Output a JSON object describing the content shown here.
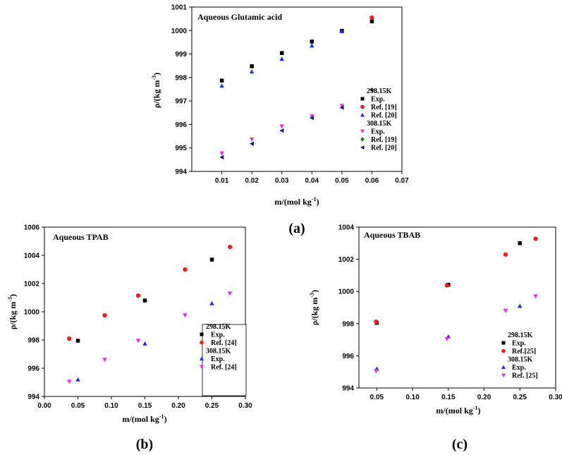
{
  "chart_data": [
    {
      "id": "a",
      "type": "scatter",
      "title": "Aqueous Glutamic acid",
      "panel_label": "(a)",
      "xlabel": "m/(mol kg",
      "xlabel_sup": "-1",
      "xlabel_close": ")",
      "ylabel": "ρ/(kg m",
      "ylabel_sup": "-3",
      "ylabel_close": ")",
      "xlim": [
        0.0,
        0.07
      ],
      "ylim": [
        994,
        1001
      ],
      "xticks": [
        0.01,
        0.02,
        0.03,
        0.04,
        0.05,
        0.06,
        0.07
      ],
      "xtick_labels": [
        "0.01",
        "0.02",
        "0.03",
        "0.04",
        "0.05",
        "0.06",
        "0.07"
      ],
      "yticks": [
        994,
        995,
        996,
        997,
        998,
        999,
        1000,
        1001
      ],
      "ytick_labels": [
        "994",
        "995",
        "996",
        "997",
        "998",
        "999",
        "1000",
        "1001"
      ],
      "legend": [
        {
          "group": "298.15K"
        },
        {
          "label": "Exp.",
          "marker": "square",
          "color": "#000000"
        },
        {
          "label": "Ref. [19]",
          "marker": "circle",
          "color": "#e8221e"
        },
        {
          "label": "Ref. [20]",
          "marker": "triangle-up",
          "color": "#1a2fe0"
        },
        {
          "group": "308.15K"
        },
        {
          "label": "Exp.",
          "marker": "triangle-down",
          "color": "#ea2ce6"
        },
        {
          "label": "Ref. [19]",
          "marker": "diamond",
          "color": "#1b7a1b"
        },
        {
          "label": "Ref. [20]",
          "marker": "triangle-left",
          "color": "#1d1a7a"
        }
      ],
      "series": [
        {
          "name": "298.15K Exp.",
          "marker": "square",
          "color": "#000000",
          "x": [
            0.01,
            0.02,
            0.03,
            0.04,
            0.05,
            0.06
          ],
          "y": [
            997.87,
            998.48,
            999.04,
            999.53,
            999.99,
            1000.39
          ]
        },
        {
          "name": "298.15K Ref. [19]",
          "marker": "circle",
          "color": "#e8221e",
          "x": [
            0.06
          ],
          "y": [
            1000.55
          ]
        },
        {
          "name": "298.15K Ref. [20]",
          "marker": "triangle-up",
          "color": "#1a2fe0",
          "x": [
            0.01,
            0.02,
            0.03,
            0.04,
            0.05
          ],
          "y": [
            997.65,
            998.25,
            998.79,
            999.36,
            999.97
          ]
        },
        {
          "name": "308.15K Exp.",
          "marker": "triangle-down",
          "color": "#ea2ce6",
          "x": [
            0.01,
            0.02,
            0.03,
            0.04,
            0.05
          ],
          "y": [
            994.77,
            995.36,
            995.92,
            996.35,
            996.79
          ]
        },
        {
          "name": "308.15K Ref. [19]",
          "marker": "diamond",
          "color": "#1b7a1b",
          "x": [
            0.06
          ],
          "y": [
            997.47
          ]
        },
        {
          "name": "308.15K Ref. [20]",
          "marker": "triangle-left",
          "color": "#1d1a7a",
          "x": [
            0.01,
            0.02,
            0.03,
            0.04,
            0.05
          ],
          "y": [
            994.6,
            995.18,
            995.74,
            996.28,
            996.72
          ]
        }
      ]
    },
    {
      "id": "b",
      "type": "scatter",
      "title": "Aqueous TPAB",
      "panel_label": "(b)",
      "xlabel": "m/(mol kg",
      "xlabel_sup": "-1",
      "xlabel_close": ")",
      "ylabel": "ρ/(kg m",
      "ylabel_sup": "-3",
      "ylabel_close": ")",
      "xlim": [
        0.0,
        0.3
      ],
      "ylim": [
        994,
        1006
      ],
      "xticks": [
        0.0,
        0.05,
        0.1,
        0.15,
        0.2,
        0.25,
        0.3
      ],
      "xtick_labels": [
        "0.00",
        "0.05",
        "0.10",
        "0.15",
        "0.20",
        "0.25",
        "0.30"
      ],
      "yticks": [
        994,
        996,
        998,
        1000,
        1002,
        1004,
        1006
      ],
      "ytick_labels": [
        "994",
        "996",
        "998",
        "1000",
        "1002",
        "1004",
        "1006"
      ],
      "legend": [
        {
          "group": "298.15K"
        },
        {
          "label": "Exp.",
          "marker": "square",
          "color": "#000000"
        },
        {
          "label": "Ref. [24]",
          "marker": "circle",
          "color": "#e8221e"
        },
        {
          "group": "308.15K"
        },
        {
          "label": "Exp.",
          "marker": "triangle-up",
          "color": "#1a2fe0"
        },
        {
          "label": "Ref. [24]",
          "marker": "triangle-down",
          "color": "#ea2ce6"
        }
      ],
      "series": [
        {
          "name": "298.15K Exp.",
          "marker": "square",
          "color": "#000000",
          "x": [
            0.05,
            0.15,
            0.25
          ],
          "y": [
            997.95,
            1000.8,
            1003.7
          ]
        },
        {
          "name": "298.15K Ref. [24]",
          "marker": "circle",
          "color": "#e8221e",
          "x": [
            0.037,
            0.09,
            0.14,
            0.21,
            0.277
          ],
          "y": [
            998.1,
            999.75,
            1001.15,
            1003.0,
            1004.6
          ]
        },
        {
          "name": "308.15K Exp.",
          "marker": "triangle-up",
          "color": "#1a2fe0",
          "x": [
            0.05,
            0.15,
            0.25
          ],
          "y": [
            995.2,
            997.75,
            1000.6
          ]
        },
        {
          "name": "308.15K Ref. [24]",
          "marker": "triangle-down",
          "color": "#ea2ce6",
          "x": [
            0.037,
            0.09,
            0.14,
            0.21,
            0.277
          ],
          "y": [
            995.05,
            996.6,
            997.95,
            999.75,
            1001.3
          ]
        }
      ]
    },
    {
      "id": "c",
      "type": "scatter",
      "title": "Aqueous TBAB",
      "panel_label": "(c)",
      "xlabel": "m/(mol kg",
      "xlabel_sup": "-1",
      "xlabel_close": ")",
      "ylabel": "ρ/(kg m",
      "ylabel_sup": "-3",
      "ylabel_close": ")",
      "xlim": [
        0.025,
        0.3
      ],
      "ylim": [
        994,
        1004
      ],
      "xticks": [
        0.05,
        0.1,
        0.15,
        0.2,
        0.25,
        0.3
      ],
      "xtick_labels": [
        "0.05",
        "0.10",
        "0.15",
        "0.20",
        "0.25",
        "0.30"
      ],
      "yticks": [
        994,
        996,
        998,
        1000,
        1002,
        1004
      ],
      "ytick_labels": [
        "994",
        "996",
        "998",
        "1000",
        "1002",
        "1004"
      ],
      "legend": [
        {
          "group": "298.15K"
        },
        {
          "label": "Exp.",
          "marker": "square",
          "color": "#000000"
        },
        {
          "label": "Ref.[25]",
          "marker": "circle",
          "color": "#e8221e"
        },
        {
          "group": "308.15K"
        },
        {
          "label": "Exp.",
          "marker": "triangle-up",
          "color": "#1a2fe0"
        },
        {
          "label": "Ref. [25]",
          "marker": "triangle-down",
          "color": "#ea2ce6"
        }
      ],
      "series": [
        {
          "name": "298.15K Exp.",
          "marker": "square",
          "color": "#000000",
          "x": [
            0.05,
            0.15,
            0.25
          ],
          "y": [
            998.05,
            1000.42,
            1003.0
          ]
        },
        {
          "name": "298.15K Ref.[25]",
          "marker": "circle",
          "color": "#e8221e",
          "x": [
            0.049,
            0.148,
            0.23,
            0.272
          ],
          "y": [
            998.12,
            1000.38,
            1002.3,
            1003.28
          ]
        },
        {
          "name": "308.15K Exp.",
          "marker": "triangle-up",
          "color": "#1a2fe0",
          "x": [
            0.05,
            0.15,
            0.25
          ],
          "y": [
            995.2,
            997.2,
            999.1
          ]
        },
        {
          "name": "308.15K Ref. [25]",
          "marker": "triangle-down",
          "color": "#ea2ce6",
          "x": [
            0.049,
            0.148,
            0.23,
            0.272
          ],
          "y": [
            995.05,
            997.05,
            998.8,
            999.7
          ]
        }
      ]
    }
  ]
}
